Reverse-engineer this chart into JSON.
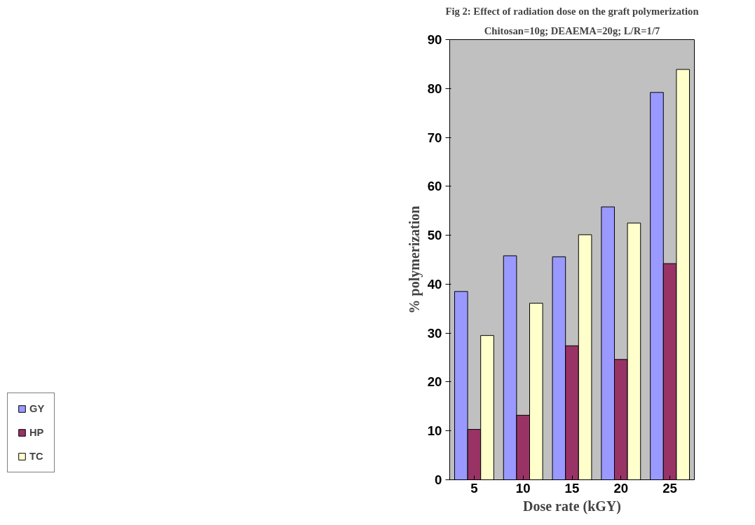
{
  "chart_data": {
    "type": "bar",
    "title": "Fig 2: Effect of radiation dose on the graft polymerization",
    "subtitle": "Chitosan=10g; DEAEMA=20g; L/R=1/7",
    "xlabel": "Dose rate (kGY)",
    "ylabel": "% polymerization",
    "categories": [
      "5",
      "10",
      "15",
      "20",
      "25"
    ],
    "series": [
      {
        "name": "GY",
        "color": "#9999ff",
        "values": [
          38.5,
          45.8,
          45.6,
          55.8,
          79.2
        ]
      },
      {
        "name": "HP",
        "color": "#993366",
        "values": [
          10.3,
          13.2,
          27.4,
          24.6,
          44.2
        ]
      },
      {
        "name": "TC",
        "color": "#ffffcc",
        "values": [
          29.5,
          36.1,
          50.1,
          52.5,
          83.9
        ]
      }
    ],
    "ylim": [
      0,
      90
    ],
    "yticks": [
      0,
      10,
      20,
      30,
      40,
      50,
      60,
      70,
      80,
      90
    ],
    "grid": false,
    "legend": "bottom left"
  }
}
